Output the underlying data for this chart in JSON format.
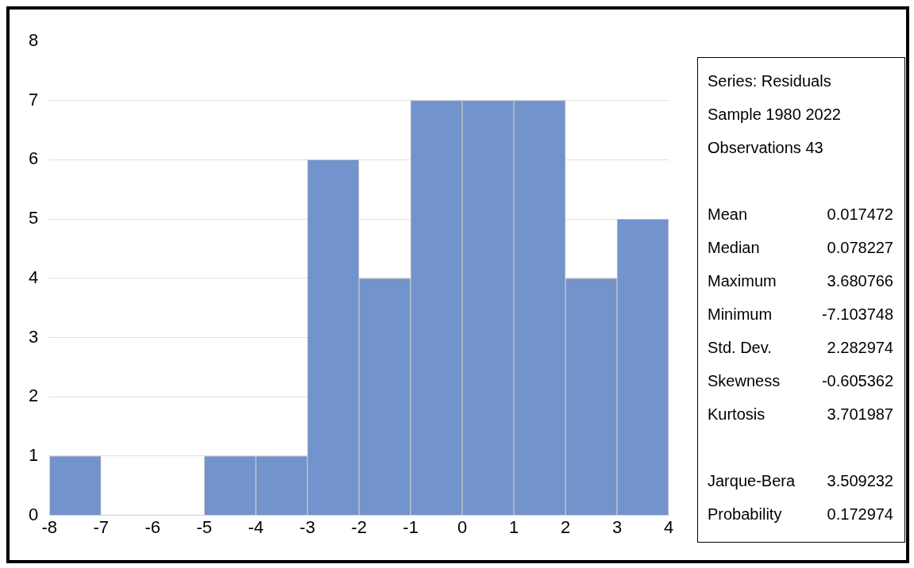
{
  "chart_data": {
    "type": "histogram",
    "bins": [
      -8,
      -7,
      -6,
      -5,
      -4,
      -3,
      -2,
      -1,
      0,
      1,
      2,
      3,
      4
    ],
    "values": [
      1,
      0,
      0,
      1,
      1,
      6,
      4,
      7,
      7,
      7,
      4,
      5
    ],
    "color": "#7293cb",
    "xlim": [
      -8,
      4
    ],
    "xticks": [
      -8,
      -7,
      -6,
      -5,
      -4,
      -3,
      -2,
      -1,
      0,
      1,
      2,
      3,
      4
    ],
    "ylim": [
      0,
      8
    ],
    "yticks": [
      0,
      1,
      2,
      3,
      4,
      5,
      6,
      7,
      8
    ],
    "grid": "y",
    "legend": false,
    "annotations": [
      "Series: Residuals",
      "Sample 1980 2022",
      "Observations 43",
      "Mean 0.017472",
      "Median 0.078227",
      "Maximum 3.680766",
      "Minimum -7.103748",
      "Std. Dev. 2.282974",
      "Skewness -0.605362",
      "Kurtosis 3.701987",
      "Jarque-Bera 3.509232",
      "Probability 0.172974"
    ]
  }
}
